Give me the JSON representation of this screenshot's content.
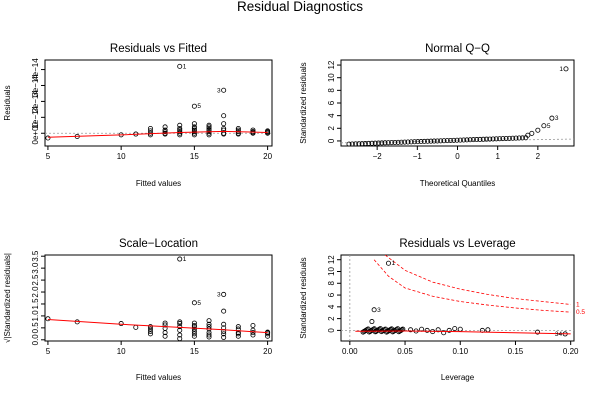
{
  "figure": {
    "title": "Residual Diagnostics"
  },
  "chart_data": [
    {
      "type": "scatter",
      "title": "Residuals vs Fitted",
      "xlabel": "Fitted values",
      "ylabel": "Residuals",
      "xlim": [
        4.8,
        20.3
      ],
      "ylim": [
        -8e-15,
        4.6e-14
      ],
      "xticks": [
        5,
        10,
        15,
        20
      ],
      "yticks": [
        0,
        1e-14,
        2e-14,
        3e-14,
        4e-14
      ],
      "ytick_labels": [
        "0e+00",
        "1e−14",
        "2e−14",
        "3e−14",
        "4e−14"
      ],
      "x": [
        5,
        7,
        10,
        11,
        12,
        12,
        12,
        12,
        13,
        13,
        13,
        13,
        13,
        14,
        14,
        14,
        14,
        14,
        14,
        14,
        15,
        15,
        15,
        15,
        15,
        15,
        15,
        15,
        16,
        16,
        16,
        16,
        16,
        16,
        16,
        17,
        17,
        17,
        17,
        17,
        17,
        17,
        18,
        18,
        18,
        18,
        18,
        19,
        19,
        19,
        19,
        20,
        20,
        20,
        20
      ],
      "y": [
        -3e-15,
        -2e-15,
        -1e-15,
        -5e-16,
        0,
        1.5e-15,
        -1e-15,
        3e-15,
        0,
        2e-15,
        -5e-16,
        4e-15,
        1e-15,
        0,
        3e-15,
        -1e-15,
        5e-15,
        2e-15,
        4.2e-14,
        1e-15,
        0,
        2e-15,
        4e-15,
        6e-15,
        1e-15,
        -1e-15,
        1.7e-14,
        3e-15,
        0,
        2e-15,
        5e-15,
        1e-15,
        -1e-15,
        3e-15,
        4e-15,
        0,
        3e-15,
        6e-15,
        1.1e-14,
        2.7e-14,
        2e-15,
        -5e-16,
        0,
        1e-15,
        3e-15,
        2e-15,
        -5e-16,
        0,
        1e-15,
        2e-15,
        5e-16,
        0,
        1.5e-15,
        1e-15,
        5e-16
      ],
      "smooth_x": [
        5,
        10,
        14,
        17,
        20
      ],
      "smooth_y": [
        -2.5e-15,
        -1e-15,
        5e-16,
        1.2e-15,
        5e-16
      ],
      "point_labels": [
        {
          "x": 14,
          "y": 4.2e-14,
          "label": "1",
          "pos": "right"
        },
        {
          "x": 15,
          "y": 1.7e-14,
          "label": "5",
          "pos": "right"
        },
        {
          "x": 17,
          "y": 2.7e-14,
          "label": "3",
          "pos": "left"
        }
      ]
    },
    {
      "type": "scatter",
      "title": "Normal Q−Q",
      "xlabel": "Theoretical Quantiles",
      "ylabel": "Standardized residuals",
      "xlim": [
        -2.9,
        2.9
      ],
      "ylim": [
        -0.8,
        12.8
      ],
      "xticks": [
        -2,
        -1,
        0,
        1,
        2
      ],
      "xtick_labels": [
        "−2",
        "−1",
        "0",
        "1",
        "2"
      ],
      "yticks": [
        0,
        2,
        4,
        6,
        8,
        10,
        12
      ],
      "qq_n": 55,
      "qq_y_low": -0.5,
      "qq_y_high": 0.5,
      "qq_outliers": [
        {
          "x": 1.75,
          "y": 0.9
        },
        {
          "x": 1.85,
          "y": 1.2
        },
        {
          "x": 2.0,
          "y": 1.7
        },
        {
          "x": 2.15,
          "y": 2.4
        },
        {
          "x": 2.35,
          "y": 3.6
        },
        {
          "x": 2.7,
          "y": 11.4
        }
      ],
      "ref_line": {
        "x": [
          -2.9,
          2.9
        ],
        "y": [
          -0.3,
          0.3
        ]
      },
      "point_labels": [
        {
          "x": 2.7,
          "y": 11.4,
          "label": "1",
          "pos": "left"
        },
        {
          "x": 2.15,
          "y": 2.4,
          "label": "5",
          "pos": "right"
        },
        {
          "x": 2.35,
          "y": 3.6,
          "label": "3",
          "pos": "right"
        }
      ]
    },
    {
      "type": "scatter",
      "title": "Scale−Location",
      "xlabel": "Fitted values",
      "ylabel": "√|Standardized residuals|",
      "xlim": [
        4.8,
        20.3
      ],
      "ylim": [
        -0.05,
        3.55
      ],
      "xticks": [
        5,
        10,
        15,
        20
      ],
      "yticks": [
        0,
        0.5,
        1.0,
        1.5,
        2.0,
        2.5,
        3.0,
        3.5
      ],
      "ytick_labels": [
        "0.0",
        "0.5",
        "1.0",
        "1.5",
        "2.0",
        "2.5",
        "3.0",
        "3.5"
      ],
      "x": [
        5,
        7,
        10,
        11,
        12,
        12,
        12,
        12,
        13,
        13,
        13,
        13,
        13,
        14,
        14,
        14,
        14,
        14,
        14,
        14,
        15,
        15,
        15,
        15,
        15,
        15,
        15,
        15,
        16,
        16,
        16,
        16,
        16,
        16,
        16,
        17,
        17,
        17,
        17,
        17,
        17,
        17,
        18,
        18,
        18,
        18,
        18,
        19,
        19,
        19,
        19,
        20,
        20,
        20,
        20
      ],
      "y": [
        0.88,
        0.75,
        0.68,
        0.52,
        0.55,
        0.45,
        0.35,
        0.25,
        0.15,
        0.62,
        0.7,
        0.48,
        0.3,
        0.68,
        0.4,
        0.2,
        0.55,
        0.75,
        3.38,
        0.05,
        0.35,
        0.6,
        0.45,
        0.7,
        0.25,
        0.15,
        1.55,
        0.55,
        0.55,
        0.65,
        0.8,
        0.3,
        0.2,
        0.45,
        0.12,
        0.1,
        0.35,
        0.65,
        1.2,
        1.9,
        0.5,
        0.25,
        0.55,
        0.3,
        0.45,
        0.15,
        0.25,
        0.6,
        0.4,
        0.2,
        0.3,
        0.3,
        0.25,
        0.15,
        0.32
      ],
      "smooth_x": [
        5,
        10,
        14,
        17,
        20
      ],
      "smooth_y": [
        0.85,
        0.65,
        0.52,
        0.42,
        0.3
      ],
      "point_labels": [
        {
          "x": 14,
          "y": 3.38,
          "label": "1",
          "pos": "right"
        },
        {
          "x": 15,
          "y": 1.55,
          "label": "5",
          "pos": "right"
        },
        {
          "x": 17,
          "y": 1.9,
          "label": "3",
          "pos": "left"
        }
      ]
    },
    {
      "type": "scatter",
      "title": "Residuals vs Leverage",
      "xlabel": "Leverage",
      "ylabel": "Standardized residuals",
      "xlim": [
        -0.008,
        0.203
      ],
      "ylim": [
        -1.8,
        12.8
      ],
      "xticks": [
        0.0,
        0.05,
        0.1,
        0.15,
        0.2
      ],
      "xtick_labels": [
        "0.00",
        "0.05",
        "0.10",
        "0.15",
        "0.20"
      ],
      "yticks": [
        0,
        2,
        4,
        6,
        8,
        10,
        12
      ],
      "cluster_n": 40,
      "cluster_x": [
        0.012,
        0.048
      ],
      "cluster_y": [
        -0.3,
        0.3
      ],
      "extra_points": [
        {
          "x": 0.055,
          "y": 0.1
        },
        {
          "x": 0.06,
          "y": -0.1
        },
        {
          "x": 0.065,
          "y": 0.2
        },
        {
          "x": 0.07,
          "y": 0.0
        },
        {
          "x": 0.075,
          "y": -0.2
        },
        {
          "x": 0.08,
          "y": 0.1
        },
        {
          "x": 0.085,
          "y": -0.4
        },
        {
          "x": 0.09,
          "y": 0.0
        },
        {
          "x": 0.095,
          "y": 0.3
        },
        {
          "x": 0.1,
          "y": 0.2
        },
        {
          "x": 0.12,
          "y": 0.0
        },
        {
          "x": 0.125,
          "y": 0.1
        },
        {
          "x": 0.17,
          "y": -0.3
        },
        {
          "x": 0.195,
          "y": -0.6
        },
        {
          "x": 0.02,
          "y": 1.5
        },
        {
          "x": 0.022,
          "y": 3.5
        },
        {
          "x": 0.035,
          "y": 11.4
        }
      ],
      "smooth_x": [
        0.005,
        0.05,
        0.1,
        0.15,
        0.2
      ],
      "smooth_y": [
        -0.15,
        -0.1,
        -0.2,
        -0.4,
        -0.6
      ],
      "cook_curves": [
        {
          "label": "1",
          "points": [
            [
              0.032,
              12.8
            ],
            [
              0.05,
              10.2
            ],
            [
              0.075,
              8.2
            ],
            [
              0.1,
              7.0
            ],
            [
              0.125,
              6.1
            ],
            [
              0.15,
              5.4
            ],
            [
              0.175,
              4.9
            ],
            [
              0.2,
              4.4
            ]
          ]
        },
        {
          "label": "0.5",
          "points": [
            [
              0.022,
              12.0
            ],
            [
              0.035,
              9.2
            ],
            [
              0.05,
              7.2
            ],
            [
              0.075,
              5.8
            ],
            [
              0.1,
              4.9
            ],
            [
              0.125,
              4.3
            ],
            [
              0.15,
              3.8
            ],
            [
              0.175,
              3.4
            ],
            [
              0.2,
              3.1
            ]
          ]
        }
      ],
      "point_labels": [
        {
          "x": 0.035,
          "y": 11.4,
          "label": "1",
          "pos": "right"
        },
        {
          "x": 0.022,
          "y": 3.5,
          "label": "3",
          "pos": "right"
        },
        {
          "x": 0.195,
          "y": -0.6,
          "label": "34",
          "pos": "left"
        }
      ]
    }
  ]
}
